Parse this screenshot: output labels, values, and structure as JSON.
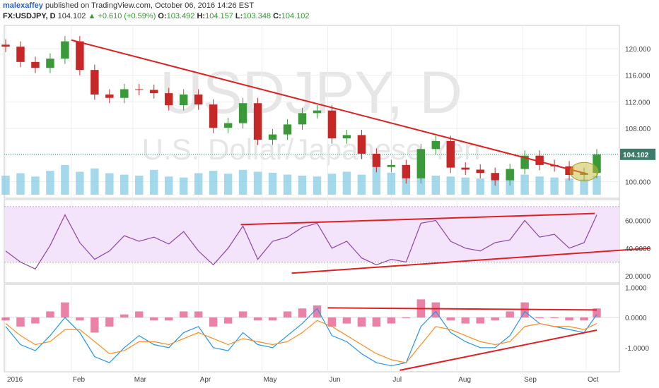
{
  "header": {
    "author": "malexaffey",
    "published_text": "published on TradingView.com, October 06, 2016 14:26 EST",
    "symbol": "FX:USDJPY, D",
    "last": "104.102",
    "change": "▲ +0.610 (+0.59%)",
    "open_label": "O:",
    "open_value": "103.492",
    "high_label": "H:",
    "high_value": "104.157",
    "low_label": "L:",
    "low_value": "103.348",
    "close_label": "C:",
    "close_value": "104.102"
  },
  "watermark": {
    "line1": "USDJPY, D",
    "line2": "U.S. Dollar/Japanese Yen"
  },
  "colors": {
    "up_candle": "#3a9a3a",
    "down_candle": "#c62828",
    "trendline": "#e02020",
    "volume": "#7ec8e3",
    "volume_ma": "#a9d6f5",
    "rsi": "#8e44ad",
    "rsi_band": "#f3e3fb",
    "macd": "#2196f3",
    "signal": "#ff8c1a",
    "histogram": "#d81b60"
  },
  "chart_data": [
    {
      "type": "candlestick",
      "title": "FX:USDJPY, D",
      "x": [
        "2016-01-01",
        "2016-01-08",
        "2016-01-15",
        "2016-01-22",
        "2016-01-29",
        "2016-02-05",
        "2016-02-12",
        "2016-02-19",
        "2016-02-26",
        "2016-03-04",
        "2016-03-11",
        "2016-03-18",
        "2016-03-25",
        "2016-04-01",
        "2016-04-08",
        "2016-04-15",
        "2016-04-22",
        "2016-04-29",
        "2016-05-06",
        "2016-05-13",
        "2016-05-20",
        "2016-05-27",
        "2016-06-03",
        "2016-06-10",
        "2016-06-17",
        "2016-06-24",
        "2016-07-01",
        "2016-07-08",
        "2016-07-15",
        "2016-07-22",
        "2016-07-29",
        "2016-08-05",
        "2016-08-12",
        "2016-08-19",
        "2016-08-26",
        "2016-09-02",
        "2016-09-09",
        "2016-09-16",
        "2016-09-23",
        "2016-09-30",
        "2016-10-06"
      ],
      "close": [
        120.3,
        118.0,
        117.1,
        118.5,
        121.1,
        116.8,
        113.1,
        112.6,
        113.9,
        113.8,
        113.3,
        111.5,
        113.1,
        111.6,
        108.1,
        108.8,
        111.8,
        106.3,
        107.1,
        108.6,
        110.3,
        110.7,
        106.5,
        107.0,
        104.2,
        102.2,
        102.5,
        100.5,
        104.9,
        106.1,
        102.1,
        101.8,
        101.3,
        100.2,
        101.9,
        103.9,
        102.5,
        102.3,
        101.0,
        101.3,
        104.1
      ],
      "y_ticks": [
        "120.000",
        "116.000",
        "112.000",
        "108.000",
        "104.000",
        "100.000"
      ],
      "y_range": [
        97.5,
        123.5
      ],
      "last_value_label": "104.102",
      "x_tick_labels": [
        "2016",
        "Feb",
        "Mar",
        "Apr",
        "May",
        "Jun",
        "Jul",
        "Aug",
        "Sep",
        "Oct"
      ],
      "trendline": {
        "from": [
          "2016-02-01",
          121.3
        ],
        "to": [
          "2016-10-01",
          101.2
        ]
      },
      "volume": [
        40,
        45,
        38,
        50,
        62,
        48,
        55,
        45,
        42,
        40,
        52,
        38,
        36,
        45,
        50,
        44,
        52,
        48,
        46,
        42,
        40,
        38,
        44,
        48,
        42,
        60,
        46,
        42,
        44,
        40,
        38,
        36,
        34,
        30,
        36,
        42,
        38,
        36,
        34,
        32,
        40
      ],
      "highlight": {
        "date": "2016-09-30",
        "value": 101.5
      }
    },
    {
      "type": "line",
      "title": "",
      "x": [
        "2016-01-01",
        "2016-01-08",
        "2016-01-15",
        "2016-01-22",
        "2016-01-29",
        "2016-02-05",
        "2016-02-12",
        "2016-02-19",
        "2016-02-26",
        "2016-03-04",
        "2016-03-11",
        "2016-03-18",
        "2016-03-25",
        "2016-04-01",
        "2016-04-08",
        "2016-04-15",
        "2016-04-22",
        "2016-04-29",
        "2016-05-06",
        "2016-05-13",
        "2016-05-20",
        "2016-05-27",
        "2016-06-03",
        "2016-06-10",
        "2016-06-17",
        "2016-06-24",
        "2016-07-01",
        "2016-07-08",
        "2016-07-15",
        "2016-07-22",
        "2016-07-29",
        "2016-08-05",
        "2016-08-12",
        "2016-08-19",
        "2016-08-26",
        "2016-09-02",
        "2016-09-09",
        "2016-09-16",
        "2016-09-23",
        "2016-09-30",
        "2016-10-06"
      ],
      "values": [
        38,
        30,
        25,
        42,
        64,
        44,
        32,
        38,
        49,
        45,
        48,
        43,
        52,
        38,
        28,
        40,
        56,
        32,
        45,
        48,
        55,
        58,
        40,
        45,
        33,
        28,
        32,
        30,
        58,
        60,
        45,
        40,
        38,
        44,
        46,
        60,
        48,
        50,
        40,
        44,
        64
      ],
      "y_ticks": [
        "60.0000",
        "40.0000",
        "20.0000"
      ],
      "y_range": [
        15,
        75
      ],
      "band": [
        30,
        70
      ],
      "trendlines": [
        {
          "from": [
            "2016-04-21",
            57
          ],
          "to": [
            "2016-10-05",
            65
          ]
        },
        {
          "from": [
            "2016-05-15",
            22
          ],
          "to": [
            "2016-10-31",
            40
          ]
        }
      ]
    },
    {
      "type": "line",
      "title": "",
      "x": [
        "2016-01-01",
        "2016-01-08",
        "2016-01-15",
        "2016-01-22",
        "2016-01-29",
        "2016-02-05",
        "2016-02-12",
        "2016-02-19",
        "2016-02-26",
        "2016-03-04",
        "2016-03-11",
        "2016-03-18",
        "2016-03-25",
        "2016-04-01",
        "2016-04-08",
        "2016-04-15",
        "2016-04-22",
        "2016-04-29",
        "2016-05-06",
        "2016-05-13",
        "2016-05-20",
        "2016-05-27",
        "2016-06-03",
        "2016-06-10",
        "2016-06-17",
        "2016-06-24",
        "2016-07-01",
        "2016-07-08",
        "2016-07-15",
        "2016-07-22",
        "2016-07-29",
        "2016-08-05",
        "2016-08-12",
        "2016-08-19",
        "2016-08-26",
        "2016-09-02",
        "2016-09-09",
        "2016-09-16",
        "2016-09-23",
        "2016-09-30",
        "2016-10-06"
      ],
      "series": [
        {
          "values": [
            -0.3,
            -0.9,
            -1.1,
            -0.6,
            0.0,
            -0.5,
            -1.3,
            -1.5,
            -1.0,
            -0.6,
            -0.9,
            -1.0,
            -0.5,
            -0.3,
            -1.0,
            -1.1,
            -0.5,
            -0.9,
            -1.0,
            -0.6,
            -0.2,
            0.3,
            -0.6,
            -0.8,
            -1.2,
            -1.5,
            -1.6,
            -1.5,
            -0.3,
            0.2,
            -0.5,
            -0.8,
            -1.0,
            -1.0,
            -0.6,
            0.2,
            -0.2,
            -0.3,
            -0.4,
            -0.5,
            0.1
          ]
        },
        {
          "values": [
            -0.2,
            -0.6,
            -0.9,
            -0.8,
            -0.4,
            -0.4,
            -0.8,
            -1.2,
            -1.1,
            -0.8,
            -0.8,
            -0.9,
            -0.7,
            -0.5,
            -0.7,
            -0.9,
            -0.7,
            -0.8,
            -0.9,
            -0.8,
            -0.5,
            -0.1,
            -0.3,
            -0.6,
            -0.9,
            -1.2,
            -1.4,
            -1.5,
            -0.9,
            -0.3,
            -0.4,
            -0.6,
            -0.8,
            -0.9,
            -0.8,
            -0.3,
            -0.2,
            -0.3,
            -0.3,
            -0.4,
            -0.2
          ]
        }
      ],
      "histogram": [
        -0.1,
        -0.3,
        -0.2,
        0.2,
        0.5,
        -0.1,
        -0.5,
        -0.3,
        0.1,
        0.2,
        -0.1,
        -0.1,
        0.2,
        0.2,
        -0.3,
        -0.2,
        0.2,
        -0.1,
        -0.1,
        0.2,
        0.3,
        0.4,
        -0.3,
        -0.2,
        -0.3,
        -0.3,
        -0.2,
        0.0,
        0.6,
        0.5,
        -0.1,
        -0.2,
        -0.2,
        -0.1,
        0.2,
        0.5,
        0.0,
        0.0,
        -0.1,
        -0.1,
        0.3
      ],
      "y_ticks": [
        "1.0000",
        "0.0000",
        "-1.0000"
      ],
      "y_range": [
        -1.8,
        1.1
      ],
      "trendlines": [
        {
          "from": [
            "2016-06-01",
            0.32
          ],
          "to": [
            "2016-10-06",
            0.25
          ]
        },
        {
          "from": [
            "2016-07-05",
            -1.75
          ],
          "to": [
            "2016-10-06",
            -0.42
          ]
        }
      ]
    }
  ]
}
